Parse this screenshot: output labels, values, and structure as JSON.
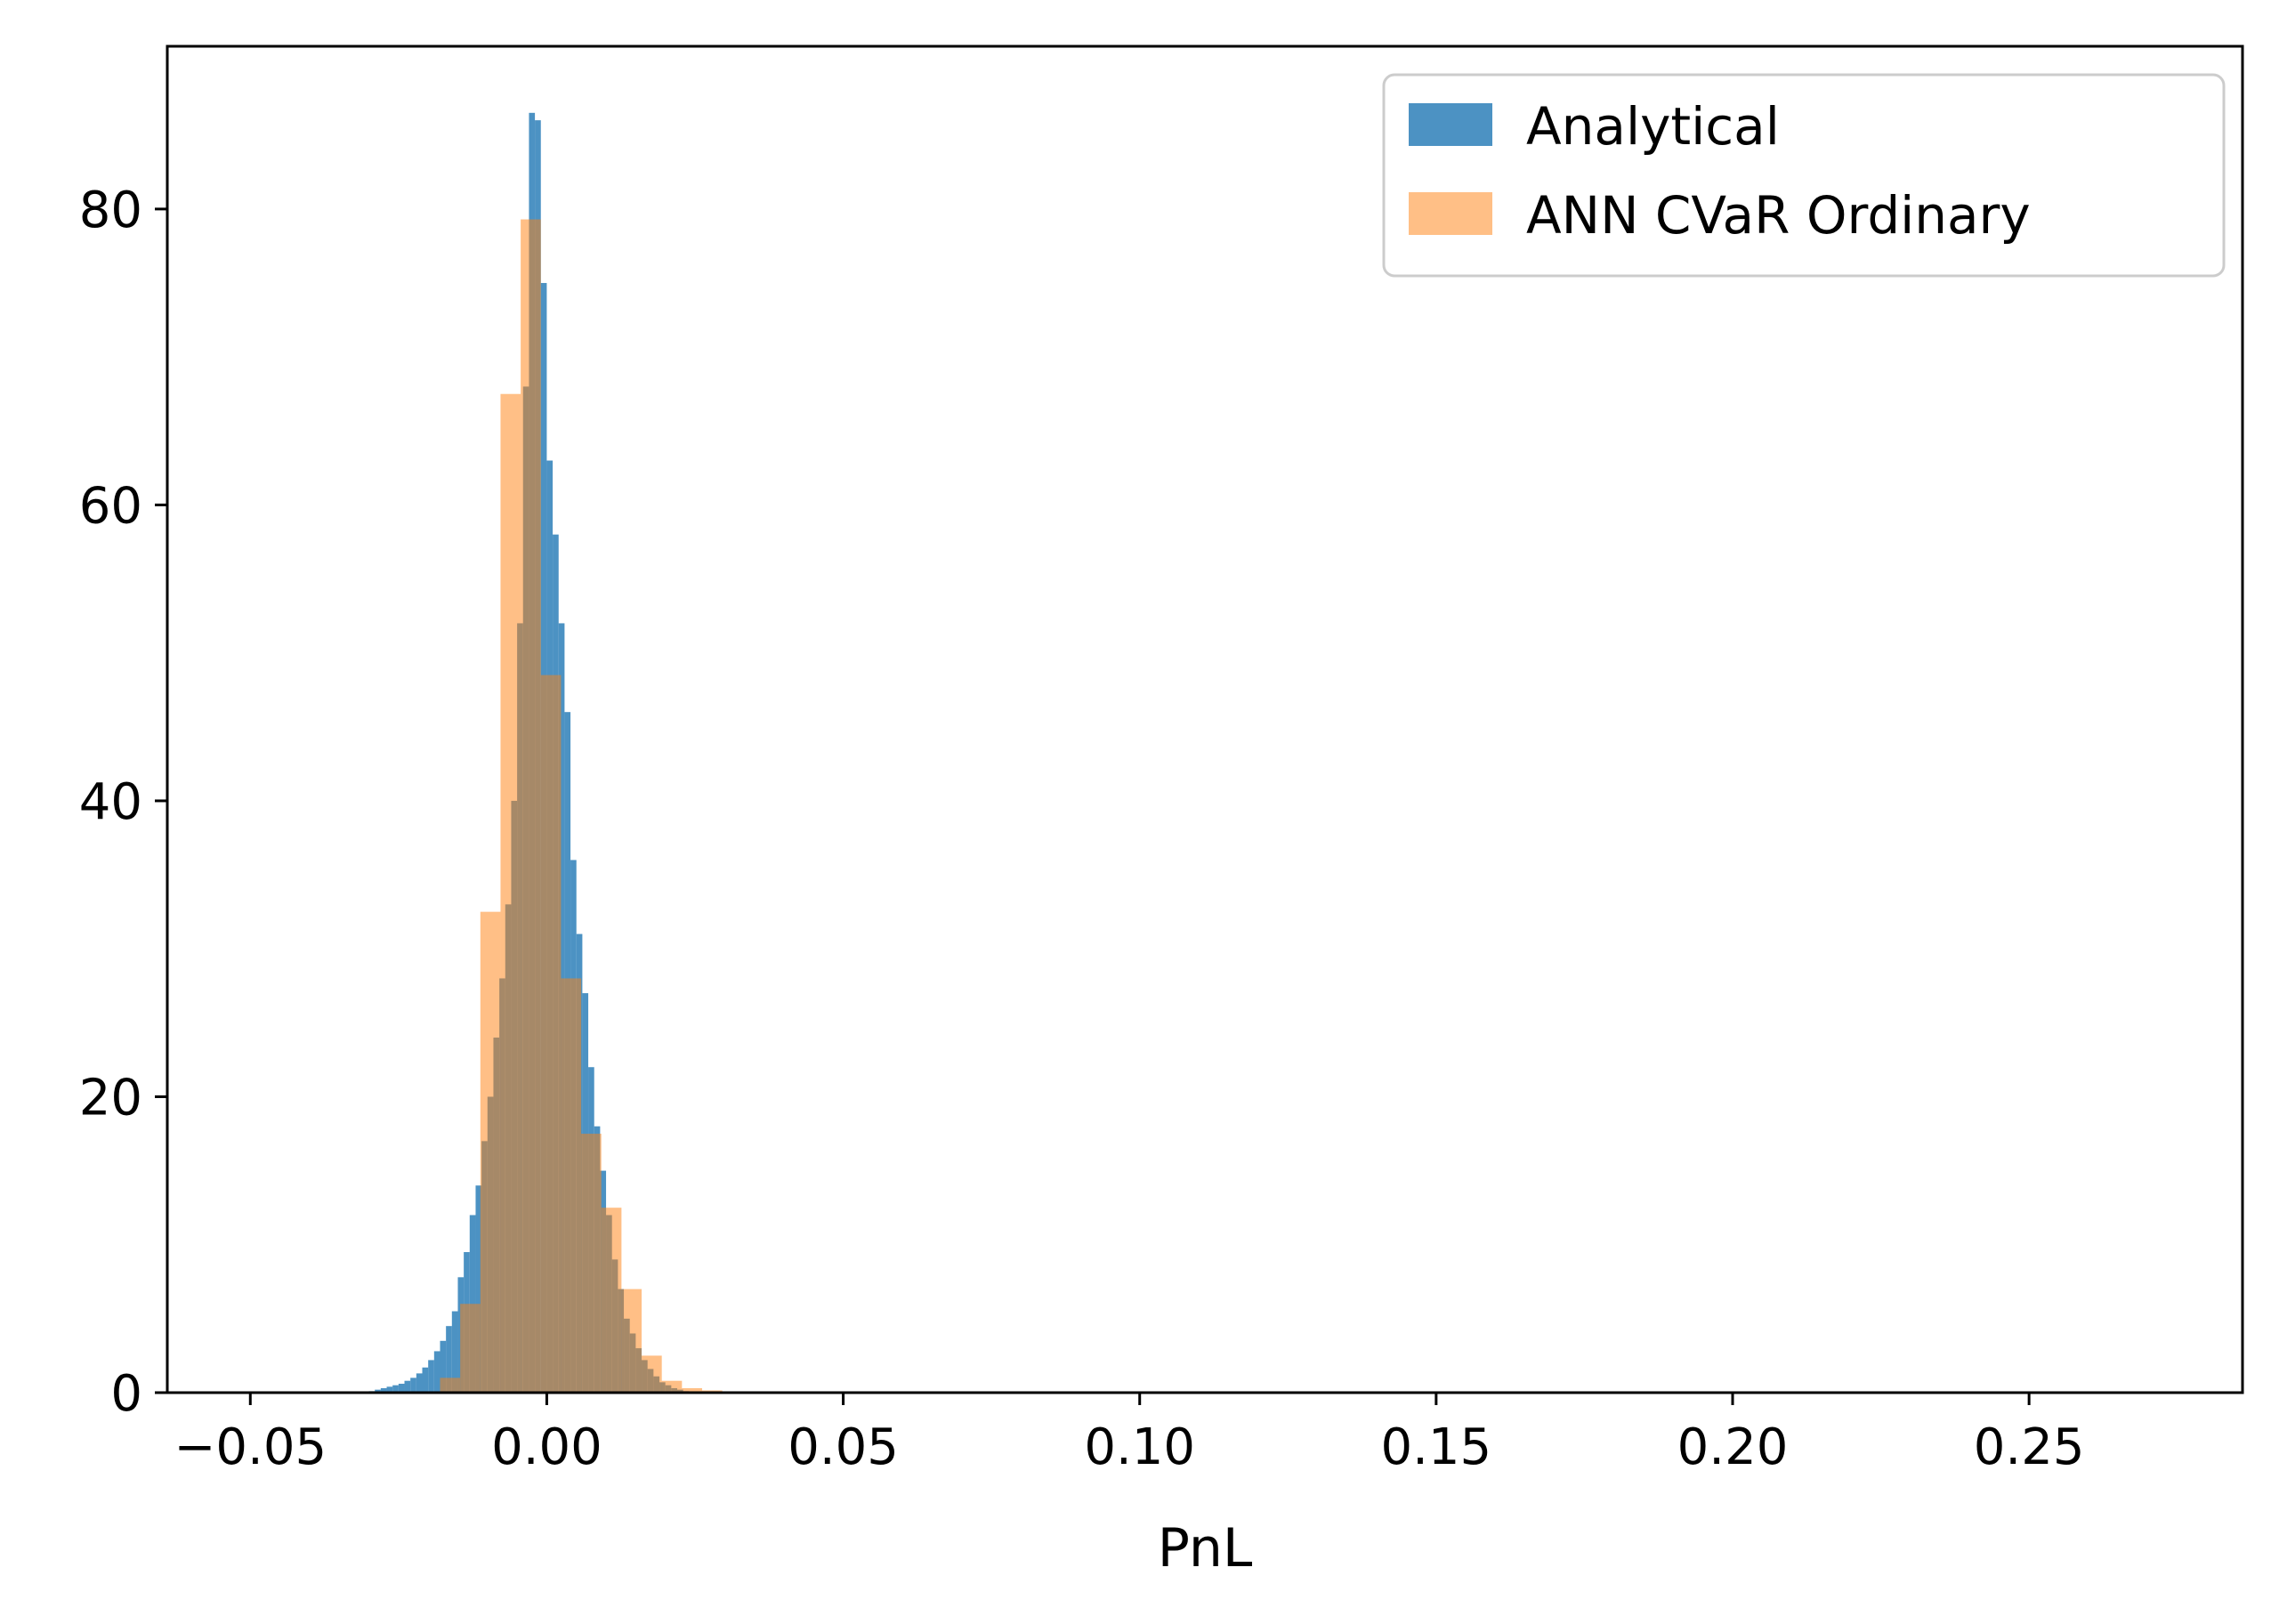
{
  "chart_data": {
    "type": "histogram",
    "title": "",
    "xlabel": "PnL",
    "ylabel": "",
    "xlim": [
      -0.064,
      0.286
    ],
    "ylim": [
      0,
      91
    ],
    "x_ticks": [
      -0.05,
      0.0,
      0.05,
      0.1,
      0.15,
      0.2,
      0.25
    ],
    "x_tick_labels": [
      "−0.05",
      "0.00",
      "0.05",
      "0.10",
      "0.15",
      "0.20",
      "0.25"
    ],
    "y_ticks": [
      0,
      20,
      40,
      60,
      80
    ],
    "y_tick_labels": [
      "0",
      "20",
      "40",
      "60",
      "80"
    ],
    "grid": false,
    "legend_position": "upper right",
    "series": [
      {
        "name": "Analytical",
        "color": "#1f77b4",
        "alpha": 0.8,
        "bin_width": 0.001,
        "bins": [
          [
            -0.03,
            0.1
          ],
          [
            -0.029,
            0.2
          ],
          [
            -0.028,
            0.3
          ],
          [
            -0.027,
            0.4
          ],
          [
            -0.026,
            0.5
          ],
          [
            -0.025,
            0.6
          ],
          [
            -0.024,
            0.8
          ],
          [
            -0.023,
            1.0
          ],
          [
            -0.022,
            1.3
          ],
          [
            -0.021,
            1.7
          ],
          [
            -0.02,
            2.2
          ],
          [
            -0.019,
            2.8
          ],
          [
            -0.018,
            3.5
          ],
          [
            -0.017,
            4.5
          ],
          [
            -0.016,
            5.5
          ],
          [
            -0.015,
            7.8
          ],
          [
            -0.014,
            9.5
          ],
          [
            -0.013,
            12.0
          ],
          [
            -0.012,
            14.0
          ],
          [
            -0.011,
            17.0
          ],
          [
            -0.01,
            20.0
          ],
          [
            -0.009,
            24.0
          ],
          [
            -0.008,
            28.0
          ],
          [
            -0.007,
            33.0
          ],
          [
            -0.006,
            40.0
          ],
          [
            -0.005,
            52.0
          ],
          [
            -0.004,
            68.0
          ],
          [
            -0.003,
            86.5
          ],
          [
            -0.002,
            86.0
          ],
          [
            -0.001,
            75.0
          ],
          [
            0.0,
            63.0
          ],
          [
            0.001,
            58.0
          ],
          [
            0.002,
            52.0
          ],
          [
            0.003,
            46.0
          ],
          [
            0.004,
            36.0
          ],
          [
            0.005,
            31.0
          ],
          [
            0.006,
            27.0
          ],
          [
            0.007,
            22.0
          ],
          [
            0.008,
            18.0
          ],
          [
            0.009,
            15.0
          ],
          [
            0.01,
            12.0
          ],
          [
            0.011,
            9.0
          ],
          [
            0.012,
            7.0
          ],
          [
            0.013,
            5.0
          ],
          [
            0.014,
            4.0
          ],
          [
            0.015,
            3.0
          ],
          [
            0.016,
            2.2
          ],
          [
            0.017,
            1.6
          ],
          [
            0.018,
            1.1
          ],
          [
            0.019,
            0.7
          ],
          [
            0.02,
            0.5
          ],
          [
            0.021,
            0.3
          ],
          [
            0.022,
            0.2
          ],
          [
            0.023,
            0.1
          ],
          [
            0.024,
            0.05
          ]
        ]
      },
      {
        "name": "ANN CVaR Ordinary",
        "color": "#ff7f0e",
        "alpha": 0.5,
        "bin_width": 0.0034,
        "bins": [
          [
            -0.018,
            1.0
          ],
          [
            -0.0146,
            6.0
          ],
          [
            -0.0112,
            32.5
          ],
          [
            -0.0078,
            67.5
          ],
          [
            -0.0044,
            79.3
          ],
          [
            -0.001,
            48.5
          ],
          [
            0.0024,
            28.0
          ],
          [
            0.0058,
            17.5
          ],
          [
            0.0092,
            12.5
          ],
          [
            0.0126,
            7.0
          ],
          [
            0.016,
            2.5
          ],
          [
            0.0194,
            0.8
          ],
          [
            0.0228,
            0.3
          ],
          [
            0.0262,
            0.15
          ],
          [
            0.0296,
            0.08
          ],
          [
            0.033,
            0.05
          ],
          [
            0.0364,
            0.03
          ],
          [
            0.0398,
            0.02
          ]
        ]
      }
    ]
  }
}
